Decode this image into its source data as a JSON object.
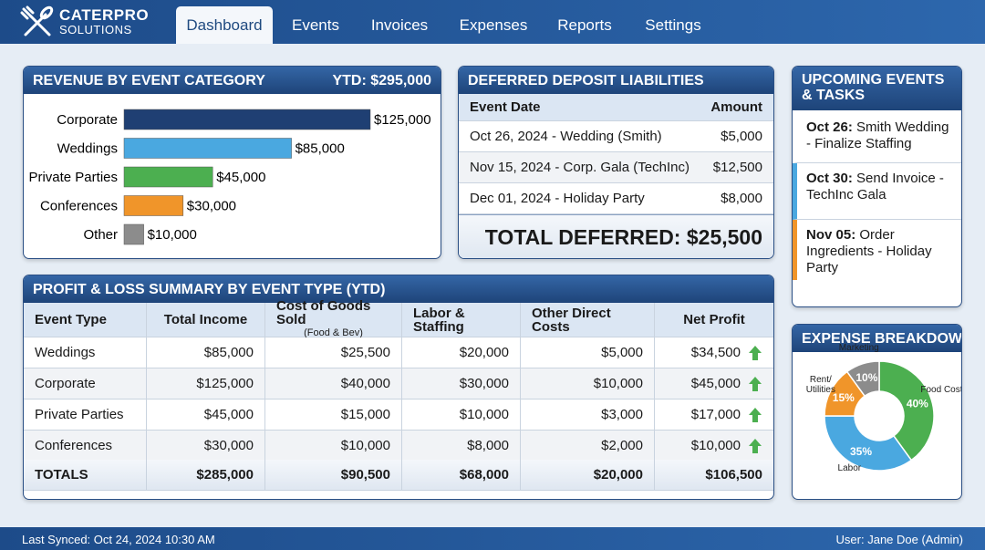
{
  "header": {
    "brand": "CATERPRO",
    "brand_sub": "SOLUTIONS",
    "nav": [
      "Dashboard",
      "Events",
      "Invoices",
      "Expenses",
      "Reports",
      "Settings"
    ],
    "active": "Dashboard"
  },
  "chart_data": [
    {
      "type": "bar",
      "orientation": "horizontal",
      "title": "REVENUE BY EVENT CATEGORY",
      "annotation": "YTD: $295,000",
      "categories": [
        "Corporate",
        "Weddings",
        "Private Parties",
        "Conferences",
        "Other"
      ],
      "values": [
        125000,
        85000,
        45000,
        30000,
        10000
      ],
      "value_labels": [
        "$125,000",
        "$85,000",
        "$45,000",
        "$30,000",
        "$10,000"
      ],
      "colors": [
        "#1f3f73",
        "#4aa8e0",
        "#4caf50",
        "#f0952a",
        "#8c8c8c"
      ]
    },
    {
      "type": "pie",
      "donut": true,
      "title": "EXPENSE BREAKDOWN",
      "categories": [
        "Food Cost",
        "Labor",
        "Rent/ Utilities",
        "Marketing"
      ],
      "values": [
        40,
        35,
        15,
        10
      ],
      "value_labels": [
        "40%",
        "35%",
        "15%",
        "10%"
      ],
      "colors": [
        "#4caf50",
        "#4aa8e0",
        "#f0952a",
        "#8c8c8c"
      ]
    }
  ],
  "deferred": {
    "title": "DEFERRED DEPOSIT LIABILITIES",
    "columns": [
      "Event Date",
      "Amount"
    ],
    "rows": [
      [
        "Oct 26, 2024 - Wedding (Smith)",
        "$5,000"
      ],
      [
        "Nov 15, 2024 - Corp. Gala (TechInc)",
        "$12,500"
      ],
      [
        "Dec 01, 2024 - Holiday Party",
        "$8,000"
      ]
    ],
    "total": "TOTAL DEFERRED: $25,500"
  },
  "pnl": {
    "title": "PROFIT & LOSS SUMMARY BY EVENT TYPE (YTD)",
    "columns": [
      "Event Type",
      "Total Income",
      "Cost of Goods Sold",
      "Labor & Staffing",
      "Other Direct Costs",
      "Net Profit"
    ],
    "column_note": "(Food & Bev)",
    "rows": [
      [
        "Weddings",
        "$85,000",
        "$25,500",
        "$20,000",
        "$5,000",
        "$34,500"
      ],
      [
        "Corporate",
        "$125,000",
        "$40,000",
        "$30,000",
        "$10,000",
        "$45,000"
      ],
      [
        "Private Parties",
        "$45,000",
        "$15,000",
        "$10,000",
        "$3,000",
        "$17,000"
      ],
      [
        "Conferences",
        "$30,000",
        "$10,000",
        "$8,000",
        "$2,000",
        "$10,000"
      ]
    ],
    "totals": [
      "TOTALS",
      "$285,000",
      "$90,500",
      "$68,000",
      "$20,000",
      "$106,500"
    ]
  },
  "events": {
    "title": "UPCOMING EVENTS & TASKS",
    "items": [
      {
        "date": "Oct 26:",
        "text": "Smith Wedding - Finalize Staffing"
      },
      {
        "date": "Oct 30:",
        "text": "Send Invoice - TechInc Gala"
      },
      {
        "date": "Nov 05:",
        "text": "Order Ingredients - Holiday Party"
      }
    ]
  },
  "footer": {
    "synced": "Last Synced: Oct 24, 2024 10:30 AM",
    "user": "User: Jane Doe (Admin)"
  }
}
